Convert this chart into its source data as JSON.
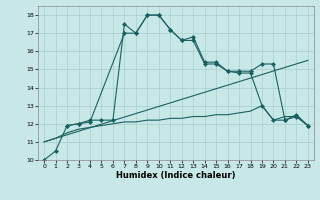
{
  "background_color": "#c8e8e8",
  "grid_color": "#aacece",
  "line_color": "#1a6060",
  "xlabel": "Humidex (Indice chaleur)",
  "ylim": [
    10,
    18.5
  ],
  "xlim": [
    -0.5,
    23.5
  ],
  "yticks": [
    10,
    11,
    12,
    13,
    14,
    15,
    16,
    17,
    18
  ],
  "xticks": [
    0,
    1,
    2,
    3,
    4,
    5,
    6,
    7,
    8,
    9,
    10,
    11,
    12,
    13,
    14,
    15,
    16,
    17,
    18,
    19,
    20,
    21,
    22,
    23
  ],
  "line1_x": [
    0,
    1,
    2,
    3,
    4,
    7,
    8,
    9,
    10,
    11,
    12,
    13,
    14,
    15,
    16,
    17,
    18,
    19,
    20,
    21,
    22,
    23
  ],
  "line1_y": [
    10.0,
    10.5,
    11.9,
    12.0,
    12.1,
    17.0,
    17.0,
    18.0,
    18.0,
    17.2,
    16.6,
    16.8,
    15.4,
    15.4,
    14.9,
    14.9,
    14.9,
    15.3,
    15.3,
    12.2,
    12.5,
    11.9
  ],
  "line2_x": [
    2,
    3,
    4,
    5,
    6,
    7,
    8,
    9,
    10,
    11,
    12,
    13,
    14,
    15,
    16,
    17,
    18,
    19,
    20,
    21,
    22,
    23
  ],
  "line2_y": [
    11.9,
    12.0,
    12.2,
    12.2,
    12.2,
    17.5,
    17.0,
    18.0,
    18.0,
    17.2,
    16.6,
    16.6,
    15.3,
    15.3,
    14.9,
    14.8,
    14.8,
    13.0,
    12.2,
    12.2,
    12.4,
    11.9
  ],
  "line3_x": [
    0,
    23
  ],
  "line3_y": [
    11.0,
    15.5
  ],
  "line4_x": [
    0,
    1,
    2,
    3,
    4,
    5,
    6,
    7,
    8,
    9,
    10,
    11,
    12,
    13,
    14,
    15,
    16,
    17,
    18,
    19,
    20,
    21,
    22,
    23
  ],
  "line4_y": [
    11.0,
    11.2,
    11.5,
    11.7,
    11.8,
    11.9,
    12.0,
    12.1,
    12.1,
    12.2,
    12.2,
    12.3,
    12.3,
    12.4,
    12.4,
    12.5,
    12.5,
    12.6,
    12.7,
    13.0,
    12.2,
    12.4,
    12.4,
    11.9
  ]
}
